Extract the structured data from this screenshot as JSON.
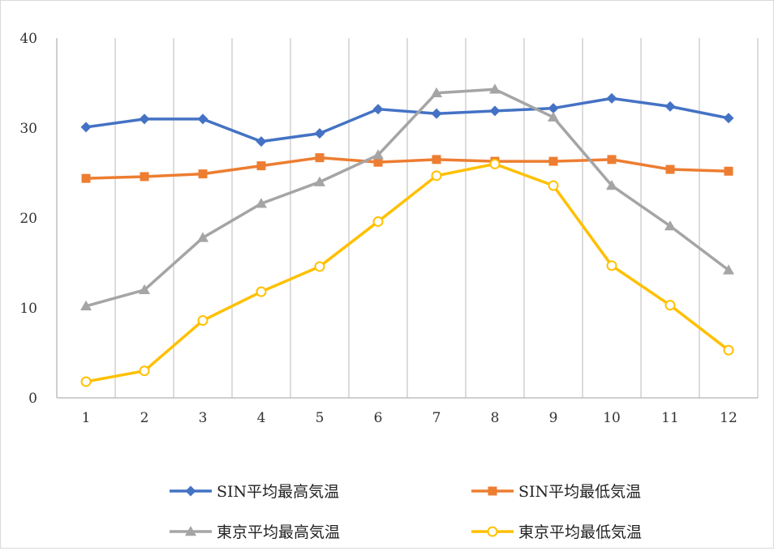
{
  "chart_data": {
    "type": "line",
    "title": "",
    "xlabel": "",
    "ylabel": "",
    "categories": [
      "1",
      "2",
      "3",
      "4",
      "5",
      "6",
      "7",
      "8",
      "9",
      "10",
      "11",
      "12"
    ],
    "ylim": [
      0,
      40
    ],
    "yticks": [
      "0",
      "10",
      "20",
      "30",
      "40"
    ],
    "grid": "vertical",
    "legend_position": "bottom",
    "series": [
      {
        "name": "SIN平均最高気温",
        "color": "#4472C4",
        "marker": "diamond",
        "values": [
          30.1,
          31.0,
          31.0,
          28.5,
          29.4,
          32.1,
          31.6,
          31.9,
          32.2,
          33.3,
          32.4,
          31.1
        ]
      },
      {
        "name": "SIN平均最低気温",
        "color": "#ED7D31",
        "marker": "square",
        "values": [
          24.4,
          24.6,
          24.9,
          25.8,
          26.7,
          26.2,
          26.5,
          26.3,
          26.3,
          26.5,
          25.4,
          25.2
        ]
      },
      {
        "name": "東京平均最高気温",
        "color": "#A5A5A5",
        "marker": "triangle",
        "values": [
          10.2,
          12.0,
          17.8,
          21.6,
          24.0,
          27.0,
          33.9,
          34.3,
          31.2,
          23.6,
          19.1,
          14.2
        ]
      },
      {
        "name": "東京平均最低気温",
        "color": "#FFC000",
        "marker": "circle",
        "values": [
          1.8,
          3.0,
          8.6,
          11.8,
          14.6,
          19.6,
          24.7,
          26.0,
          23.6,
          14.7,
          10.3,
          5.3
        ]
      }
    ]
  }
}
